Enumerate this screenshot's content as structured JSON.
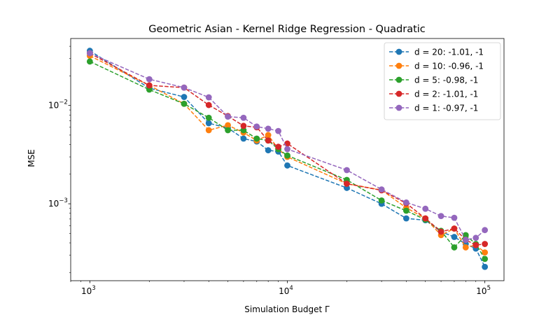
{
  "chart_data": {
    "type": "line",
    "title": "Geometric Asian - Kernel Ridge Regression - Quadratic",
    "xlabel": "Simulation Budget Γ",
    "ylabel": "MSE",
    "xscale": "log",
    "yscale": "log",
    "xlim": [
      800,
      125000
    ],
    "ylim": [
      0.000165,
      0.048
    ],
    "grid": false,
    "legend_position": "top-right",
    "x_ticks": [
      {
        "value": 1000,
        "base": "10",
        "exp": "3"
      },
      {
        "value": 10000,
        "base": "10",
        "exp": "4"
      },
      {
        "value": 100000,
        "base": "10",
        "exp": "5"
      }
    ],
    "y_ticks": [
      {
        "value": 0.001,
        "base": "10",
        "exp": "−3"
      },
      {
        "value": 0.01,
        "base": "10",
        "exp": "−2"
      }
    ],
    "x": [
      1000,
      2000,
      3000,
      4000,
      5000,
      6000,
      7000,
      8000,
      9000,
      10000,
      20000,
      30000,
      40000,
      50000,
      60000,
      70000,
      80000,
      90000,
      100000
    ],
    "series": [
      {
        "name": "d = 20: -1.01, -1",
        "color": "#1f77b4",
        "values": [
          0.036,
          0.015,
          0.0122,
          0.0066,
          0.0059,
          0.0046,
          0.0043,
          0.0035,
          0.0034,
          0.00245,
          0.00145,
          0.001,
          0.00071,
          0.00068,
          0.00052,
          0.00046,
          0.00039,
          0.00035,
          0.000228
        ]
      },
      {
        "name": "d = 10: -0.96, -1",
        "color": "#ff7f0e",
        "values": [
          0.032,
          0.016,
          0.0104,
          0.0056,
          0.0063,
          0.0053,
          0.0044,
          0.005,
          0.0036,
          0.003,
          0.0016,
          0.00138,
          0.00091,
          0.00071,
          0.00048,
          0.00056,
          0.00036,
          0.00038,
          0.00032
        ]
      },
      {
        "name": "d = 5: -0.98, -1",
        "color": "#2ca02c",
        "values": [
          0.028,
          0.0145,
          0.0104,
          0.0075,
          0.0056,
          0.0056,
          0.0046,
          0.0044,
          0.0036,
          0.0031,
          0.00175,
          0.00108,
          0.00085,
          0.00069,
          0.00053,
          0.00036,
          0.00048,
          0.00039,
          0.000275
        ]
      },
      {
        "name": "d = 2: -1.01, -1",
        "color": "#d62728",
        "values": [
          0.034,
          0.016,
          0.0152,
          0.0101,
          0.0078,
          0.0062,
          0.006,
          0.0044,
          0.0038,
          0.0041,
          0.0016,
          0.00137,
          0.00101,
          0.00071,
          0.00052,
          0.00056,
          0.00043,
          0.00038,
          0.00039
        ]
      },
      {
        "name": "d = 1: -0.97, -1",
        "color": "#9467bd",
        "values": [
          0.034,
          0.0185,
          0.0152,
          0.0121,
          0.0077,
          0.0075,
          0.0061,
          0.0058,
          0.0055,
          0.0036,
          0.0022,
          0.0014,
          0.00103,
          0.00089,
          0.00075,
          0.00072,
          0.00043,
          0.00045,
          0.00054
        ]
      }
    ]
  }
}
